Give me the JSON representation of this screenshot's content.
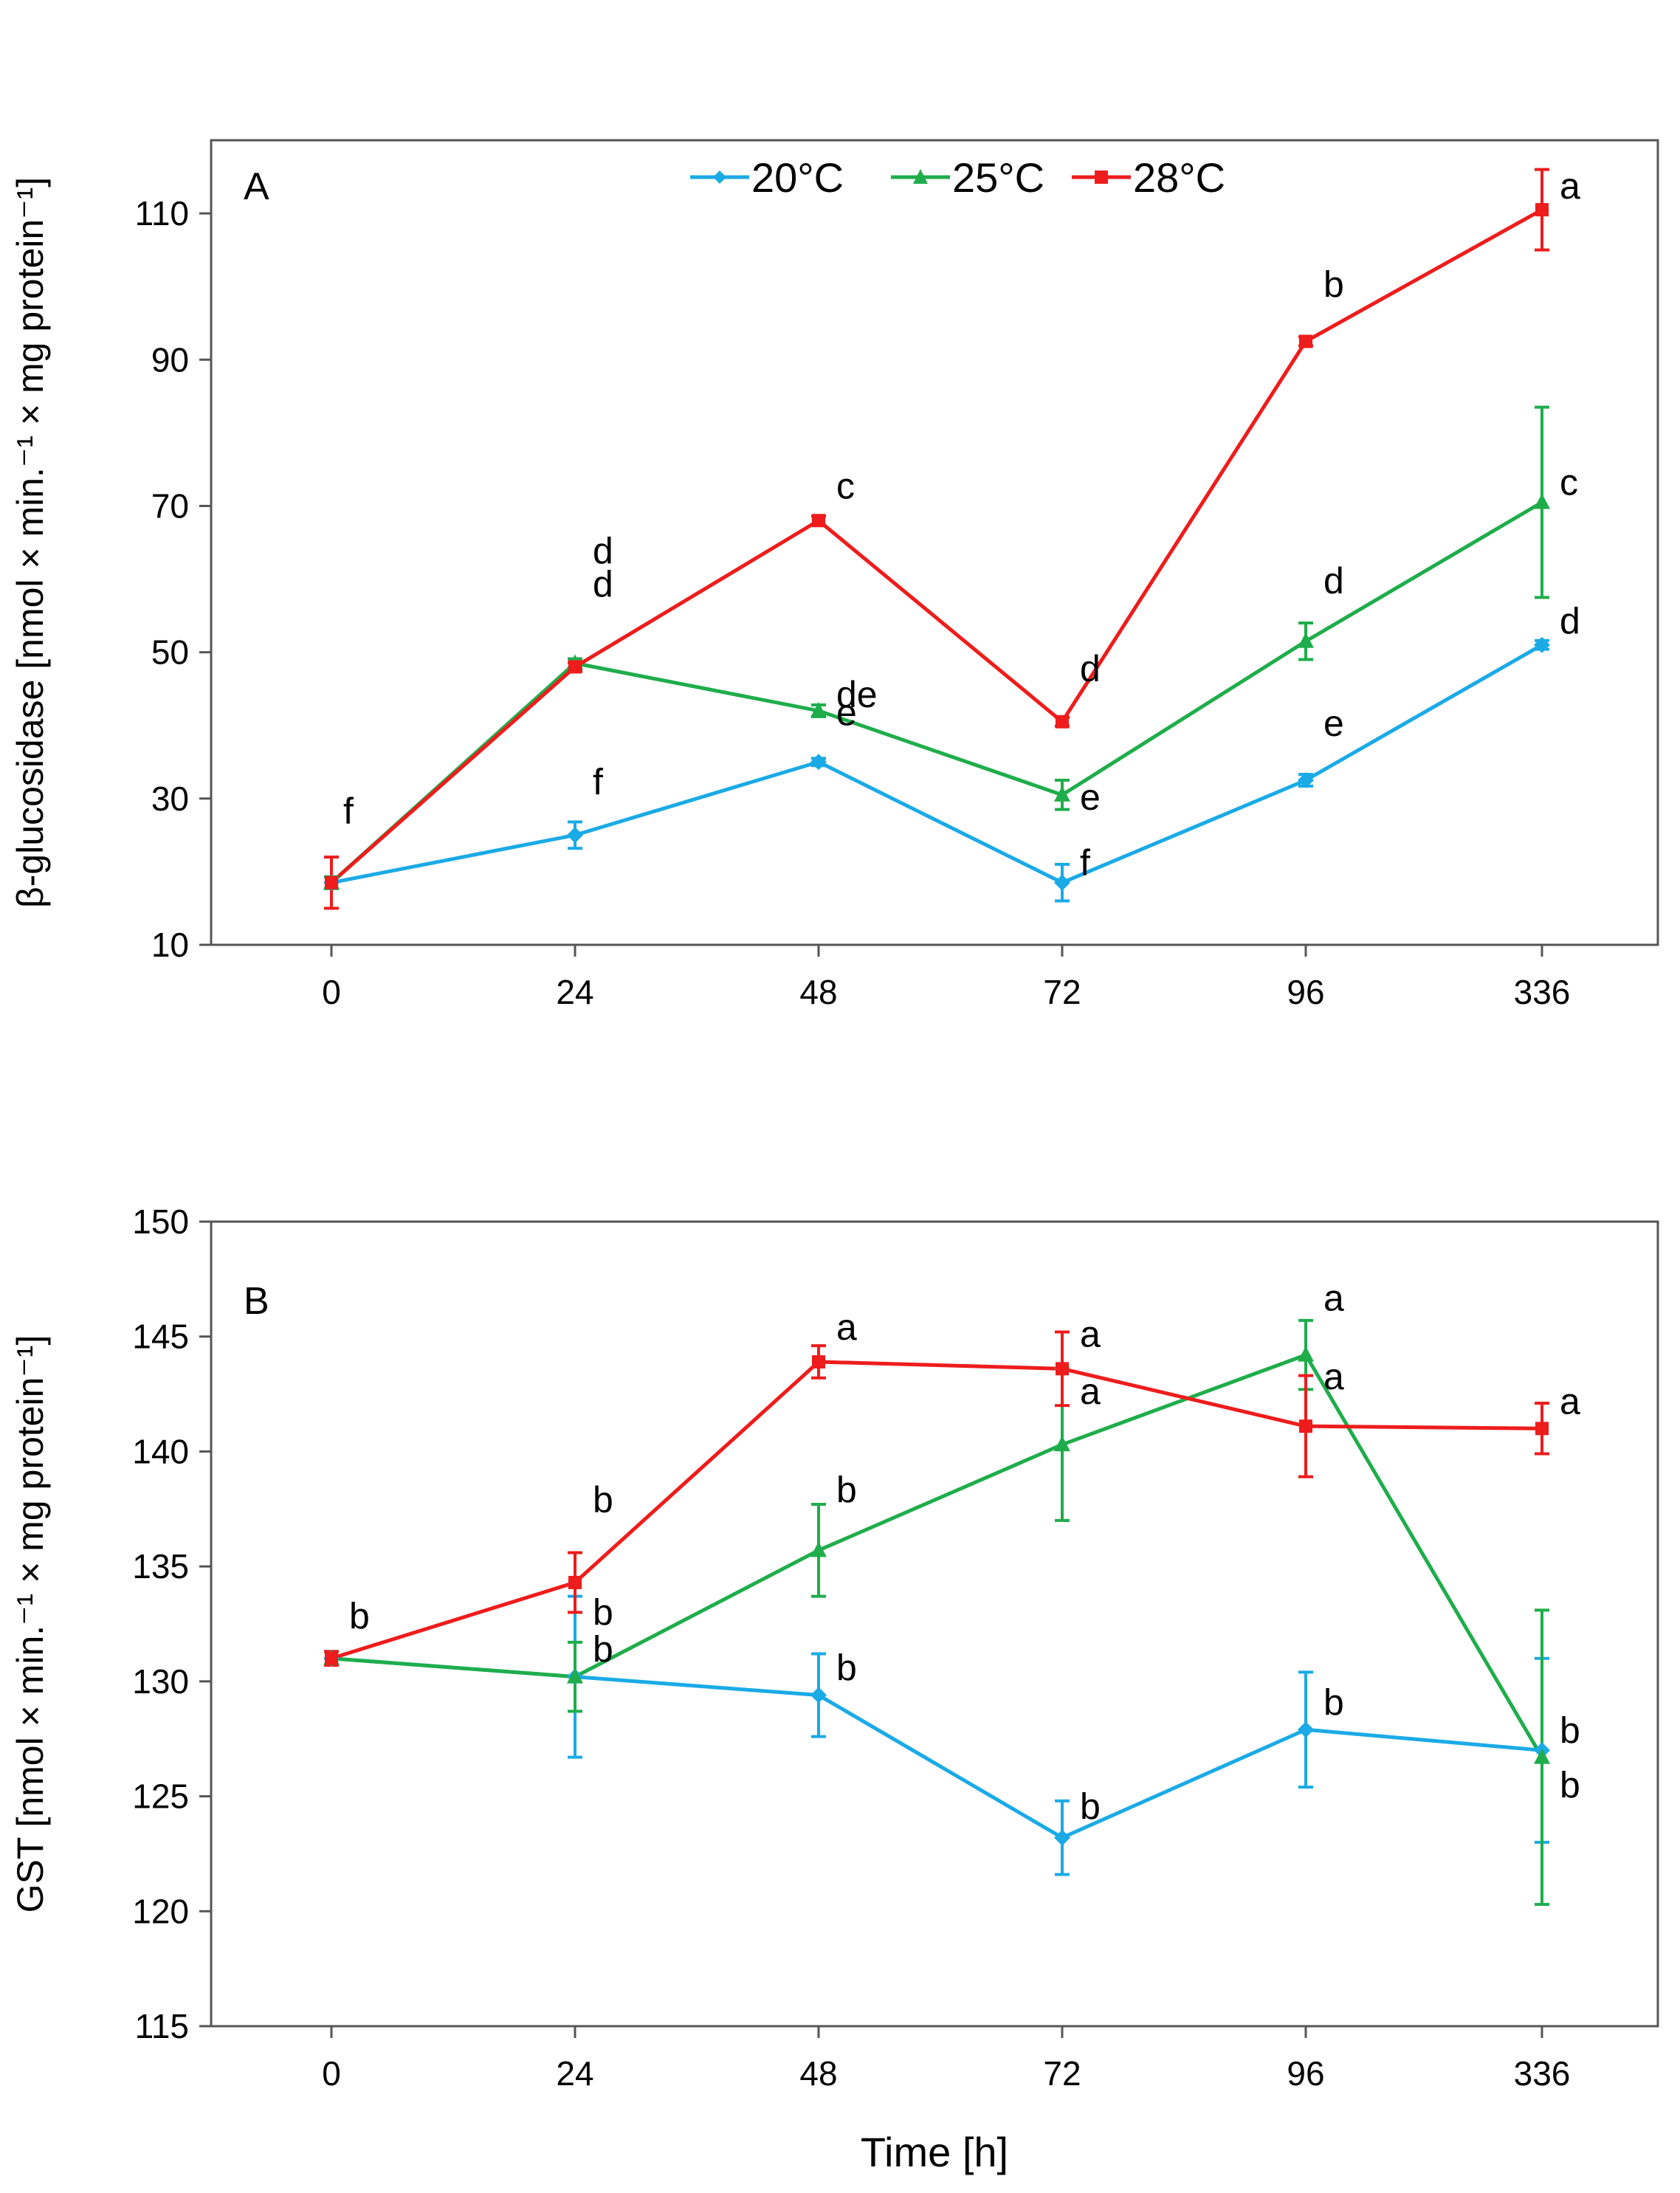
{
  "figure": {
    "x_label": "Time [h]"
  },
  "chart_data": [
    {
      "type": "line",
      "panel_label": "A",
      "title": "",
      "xlabel": "",
      "ylabel": "β-glucosidase [nmol × min.⁻¹ × mg protein⁻¹]",
      "categories": [
        "0",
        "24",
        "48",
        "72",
        "96",
        "336"
      ],
      "ylim": [
        10,
        120
      ],
      "yticks": [
        10,
        30,
        50,
        70,
        90,
        110
      ],
      "legend": "top-center",
      "series": [
        {
          "name": "20°C",
          "color": "#1aaae6",
          "marker": "diamond",
          "values": [
            18.5,
            25,
            35,
            18.5,
            32.5,
            51
          ],
          "errors": [
            0.8,
            1.8,
            0.5,
            2.5,
            0.8,
            0.6
          ],
          "letters": [
            "f",
            "f",
            "e",
            "f",
            "e",
            "d"
          ]
        },
        {
          "name": "25°C",
          "color": "#1fad4b",
          "marker": "triangle",
          "values": [
            18.5,
            48.5,
            42,
            30.5,
            51.5,
            70.5
          ],
          "errors": [
            0.8,
            0.6,
            0.8,
            2.0,
            2.5,
            13
          ],
          "letters": [
            "",
            "d",
            "de",
            "e",
            "d",
            "c"
          ]
        },
        {
          "name": "28°C",
          "color": "#ee1c1c",
          "marker": "square",
          "values": [
            18.5,
            48,
            68,
            40.5,
            92.5,
            110.5
          ],
          "errors": [
            3.5,
            0.6,
            0.6,
            0.6,
            0.6,
            5.5
          ],
          "letters": [
            "",
            "d",
            "c",
            "d",
            "b",
            "a"
          ]
        }
      ]
    },
    {
      "type": "line",
      "panel_label": "B",
      "title": "",
      "xlabel": "Time [h]",
      "ylabel": "GST [nmol × min.⁻¹ × mg protein⁻¹]",
      "categories": [
        "0",
        "24",
        "48",
        "72",
        "96",
        "336"
      ],
      "ylim": [
        115,
        150
      ],
      "yticks": [
        115,
        120,
        125,
        130,
        135,
        140,
        145,
        150
      ],
      "series": [
        {
          "name": "20°C",
          "color": "#1aaae6",
          "marker": "diamond",
          "values": [
            131,
            130.2,
            129.4,
            123.2,
            127.9,
            127
          ],
          "errors": [
            0.3,
            3.5,
            1.8,
            1.6,
            2.5,
            4.0
          ],
          "letters": [
            "b",
            "b",
            "b",
            "b",
            "b",
            "b"
          ]
        },
        {
          "name": "25°C",
          "color": "#1fad4b",
          "marker": "triangle",
          "values": [
            131,
            130.2,
            135.7,
            140.3,
            144.2,
            126.7
          ],
          "errors": [
            0.3,
            1.5,
            2.0,
            3.3,
            1.5,
            6.4
          ],
          "letters": [
            "",
            "b",
            "b",
            "a",
            "a",
            "b"
          ]
        },
        {
          "name": "28°C",
          "color": "#ee1c1c",
          "marker": "square",
          "values": [
            131,
            134.3,
            143.9,
            143.6,
            141.1,
            141
          ],
          "errors": [
            0.3,
            1.3,
            0.7,
            1.6,
            2.2,
            1.1
          ],
          "letters": [
            "",
            "b",
            "a",
            "a",
            "a",
            "a"
          ]
        }
      ]
    }
  ]
}
